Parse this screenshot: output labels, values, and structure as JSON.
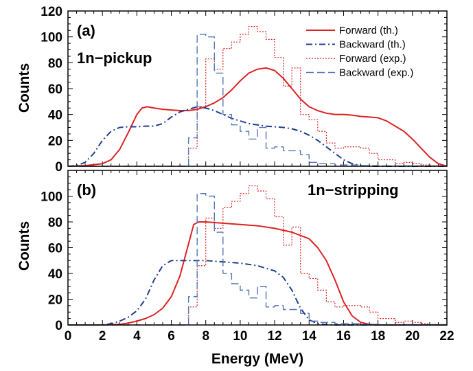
{
  "chart_data": [
    {
      "type": "line",
      "panel_label": "(a)",
      "annotation": "1n−pickup",
      "ylabel": "Counts",
      "xlabel": "",
      "xlim": [
        0,
        22
      ],
      "ylim": [
        0,
        120
      ],
      "x_ticks": [
        "0",
        "2",
        "4",
        "6",
        "8",
        "10",
        "12",
        "14",
        "16",
        "18",
        "20",
        "22"
      ],
      "y_ticks": [
        "0",
        "20",
        "40",
        "60",
        "80",
        "100",
        "120"
      ],
      "legend_position": "top-right",
      "series": [
        {
          "name": "Forward (th.)",
          "color": "#dd2222",
          "style": "solid",
          "kind": "curve",
          "x": [
            0,
            1,
            2,
            2.5,
            3,
            3.5,
            4,
            4.3,
            4.6,
            5,
            5.5,
            6,
            6.5,
            7,
            7.5,
            8,
            8.5,
            9,
            9.5,
            10,
            10.5,
            11,
            11.5,
            12,
            12.5,
            13,
            13.5,
            14,
            14.5,
            15,
            15.5,
            16,
            16.5,
            17,
            17.5,
            18,
            18.5,
            19,
            19.5,
            20,
            20.5,
            21,
            21.5,
            22
          ],
          "y": [
            0,
            0.5,
            2,
            5,
            13,
            26,
            40,
            45,
            46,
            45,
            44,
            43.5,
            43,
            43,
            44,
            46,
            49,
            53,
            59,
            66,
            72,
            75,
            76,
            74,
            68,
            60,
            52,
            46,
            43,
            41,
            40,
            40,
            39.5,
            38.5,
            38,
            37.5,
            35,
            31,
            27,
            21,
            14,
            7,
            2,
            0
          ]
        },
        {
          "name": "Backward (th.)",
          "color": "#1e3f8c",
          "style": "dashdot",
          "kind": "curve",
          "x": [
            0,
            0.5,
            1,
            1.5,
            2,
            2.5,
            3,
            3.5,
            4,
            4.5,
            5,
            5.5,
            6,
            6.5,
            7,
            7.5,
            8,
            8.5,
            9,
            9.5,
            10,
            10.5,
            11,
            11.5,
            12,
            12.5,
            13,
            13.5,
            14,
            14.5,
            15,
            15.5,
            16,
            16.5,
            17,
            17.5,
            18,
            18.5,
            19,
            20,
            22
          ],
          "y": [
            0,
            0.5,
            3,
            10,
            20,
            27,
            30,
            30.5,
            30.5,
            31,
            31,
            33,
            38,
            42,
            44,
            46,
            45,
            43,
            40,
            37,
            35,
            33,
            32,
            31,
            30.5,
            30,
            29,
            27,
            24,
            20,
            15,
            10,
            5,
            2,
            0.5,
            0,
            0,
            0,
            0,
            0,
            0
          ]
        },
        {
          "name": "Forward (exp.)",
          "color": "#dd2222",
          "style": "dotted",
          "kind": "histogram",
          "edges": [
            0,
            7,
            7.5,
            8,
            8.5,
            9,
            9.5,
            10,
            10.5,
            11,
            11.5,
            12,
            12.5,
            13,
            13.5,
            14,
            14.5,
            15,
            15.5,
            16,
            16.5,
            17,
            17.5,
            18,
            18.5,
            19,
            19.5,
            20,
            20.5,
            21,
            21.5,
            22
          ],
          "values": [
            0,
            14,
            46,
            83,
            75,
            91,
            96,
            102,
            108,
            104,
            98,
            84,
            62,
            76,
            40,
            36,
            27,
            18,
            14,
            15,
            15,
            14,
            10,
            5,
            5,
            2,
            3,
            2,
            1,
            0.5,
            0
          ]
        },
        {
          "name": "Backward (exp.)",
          "color": "#5577bb",
          "style": "dashed",
          "kind": "histogram",
          "edges": [
            0,
            7,
            7.5,
            8,
            8.5,
            9,
            9.5,
            10,
            10.5,
            11,
            11.5,
            12,
            12.5,
            13,
            13.5,
            14,
            14.5,
            15,
            15.5,
            16,
            16.5,
            17,
            17.5,
            18,
            22
          ],
          "values": [
            0,
            22,
            102,
            100,
            72,
            40,
            32,
            27,
            21,
            30,
            14,
            15,
            12,
            12,
            9,
            3,
            2,
            2,
            1,
            1,
            1,
            0.5,
            0.5,
            0.3,
            0
          ]
        }
      ]
    },
    {
      "type": "line",
      "panel_label": "(b)",
      "annotation": "1n−stripping",
      "ylabel": "Counts",
      "xlabel": "Energy (MeV)",
      "xlim": [
        0,
        22
      ],
      "ylim": [
        0,
        120
      ],
      "x_ticks": [
        "0",
        "2",
        "4",
        "6",
        "8",
        "10",
        "12",
        "14",
        "16",
        "18",
        "20",
        "22"
      ],
      "y_ticks": [
        "0",
        "20",
        "40",
        "60",
        "80",
        "100"
      ],
      "series": [
        {
          "name": "Forward (th.)",
          "color": "#dd2222",
          "style": "solid",
          "kind": "curve",
          "x": [
            0,
            2,
            3,
            3.5,
            4,
            4.5,
            5,
            5.5,
            6,
            6.5,
            7,
            7.3,
            7.6,
            8,
            9,
            10,
            11,
            12,
            13,
            14,
            14.5,
            15,
            15.5,
            16,
            16.5,
            17,
            17.5,
            18,
            19,
            22
          ],
          "y": [
            0,
            0,
            0.5,
            1.5,
            3,
            5,
            8,
            13,
            22,
            38,
            63,
            78,
            80,
            80,
            79,
            78,
            77,
            75,
            72,
            67,
            60,
            50,
            35,
            18,
            7,
            2,
            0.5,
            0,
            0,
            0
          ]
        },
        {
          "name": "Backward (th.)",
          "color": "#1e3f8c",
          "style": "dashdot",
          "kind": "curve",
          "x": [
            0,
            2,
            2.5,
            3,
            3.5,
            4,
            4.5,
            5,
            5.5,
            6,
            7,
            8,
            9,
            10,
            11,
            12,
            12.5,
            13,
            13.5,
            14,
            14.5,
            15,
            15.5,
            16,
            17,
            22
          ],
          "y": [
            0,
            0,
            1,
            3,
            6,
            11,
            20,
            35,
            46,
            50,
            50,
            50,
            49,
            48,
            46,
            42,
            37,
            27,
            13,
            4,
            1,
            0.3,
            0,
            0,
            0,
            0
          ]
        },
        {
          "name": "Forward (exp.)",
          "color": "#dd2222",
          "style": "dotted",
          "kind": "histogram",
          "edges": [
            0,
            7,
            7.5,
            8,
            8.5,
            9,
            9.5,
            10,
            10.5,
            11,
            11.5,
            12,
            12.5,
            13,
            13.5,
            14,
            14.5,
            15,
            15.5,
            16,
            16.5,
            17,
            17.5,
            18,
            18.5,
            19,
            19.5,
            20,
            20.5,
            21,
            21.5,
            22
          ],
          "values": [
            0,
            14,
            46,
            83,
            75,
            91,
            96,
            102,
            108,
            104,
            98,
            84,
            62,
            76,
            40,
            36,
            27,
            18,
            14,
            15,
            15,
            14,
            10,
            5,
            5,
            2,
            3,
            2,
            1,
            0.5,
            0
          ]
        },
        {
          "name": "Backward (exp.)",
          "color": "#5577bb",
          "style": "dashed",
          "kind": "histogram",
          "edges": [
            0,
            7,
            7.5,
            8,
            8.5,
            9,
            9.5,
            10,
            10.5,
            11,
            11.5,
            12,
            12.5,
            13,
            13.5,
            14,
            14.5,
            15,
            15.5,
            16,
            16.5,
            17,
            17.5,
            18,
            22
          ],
          "values": [
            0,
            22,
            102,
            100,
            72,
            40,
            32,
            27,
            21,
            30,
            14,
            15,
            12,
            12,
            9,
            3,
            2,
            2,
            1,
            1,
            1,
            0.5,
            0.5,
            0.3,
            0
          ]
        }
      ]
    }
  ]
}
